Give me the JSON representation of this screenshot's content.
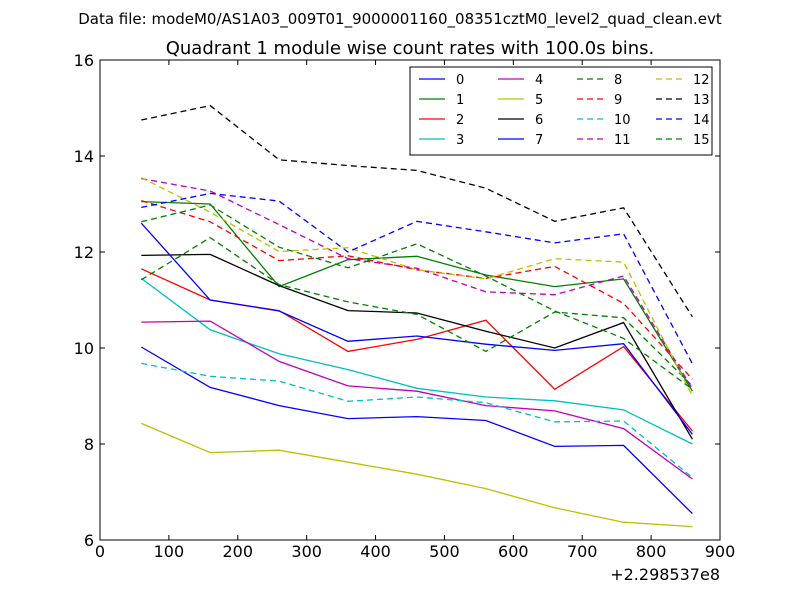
{
  "header": {
    "data_file": "Data file: modeM0/AS1A03_009T01_9000001160_08351cztM0_level2_quad_clean.evt"
  },
  "chart_data": {
    "type": "line",
    "title": "Quadrant 1 module wise count rates with 100.0s bins.",
    "xlabel": "",
    "ylabel": "",
    "x_offset_label": "+2.298537e8",
    "xlim": [
      0,
      900
    ],
    "ylim": [
      6,
      16
    ],
    "xticks": [
      0,
      100,
      200,
      300,
      400,
      500,
      600,
      700,
      800,
      900
    ],
    "yticks": [
      6,
      8,
      10,
      12,
      14,
      16
    ],
    "grid": false,
    "legend_placement": "top-right",
    "legend_columns": 4,
    "x": [
      60,
      160,
      260,
      360,
      460,
      560,
      660,
      760,
      860
    ],
    "series": [
      {
        "name": "0",
        "color": "#0000ff",
        "dash": "solid",
        "values": [
          10.02,
          9.18,
          8.8,
          8.53,
          8.57,
          8.49,
          7.95,
          7.97,
          6.55
        ]
      },
      {
        "name": "1",
        "color": "#008000",
        "dash": "solid",
        "values": [
          13.05,
          13.0,
          11.28,
          11.84,
          11.91,
          11.52,
          11.28,
          11.44,
          9.1
        ]
      },
      {
        "name": "2",
        "color": "#ff0000",
        "dash": "solid",
        "values": [
          11.65,
          11.0,
          10.78,
          9.93,
          10.18,
          10.58,
          9.14,
          10.03,
          8.27
        ]
      },
      {
        "name": "3",
        "color": "#00bfbf",
        "dash": "solid",
        "values": [
          11.45,
          10.38,
          9.88,
          9.55,
          9.16,
          8.98,
          8.9,
          8.71,
          8.0
        ]
      },
      {
        "name": "4",
        "color": "#bf00bf",
        "dash": "solid",
        "values": [
          10.54,
          10.56,
          9.72,
          9.21,
          9.1,
          8.8,
          8.69,
          8.32,
          7.27
        ]
      },
      {
        "name": "5",
        "color": "#bfbf00",
        "dash": "solid",
        "values": [
          8.43,
          7.82,
          7.87,
          7.62,
          7.37,
          7.07,
          6.67,
          6.37,
          6.28
        ]
      },
      {
        "name": "6",
        "color": "#000000",
        "dash": "solid",
        "values": [
          11.93,
          11.95,
          11.3,
          10.78,
          10.73,
          10.35,
          10.0,
          10.53,
          8.1
        ]
      },
      {
        "name": "7",
        "color": "#0000ff",
        "dash": "solid",
        "values": [
          12.6,
          11.0,
          10.77,
          10.14,
          10.25,
          10.08,
          9.95,
          10.09,
          8.2
        ]
      },
      {
        "name": "8",
        "color": "#008000",
        "dash": "dashed",
        "values": [
          11.42,
          12.3,
          11.32,
          10.96,
          10.7,
          9.93,
          10.75,
          10.63,
          9.21
        ]
      },
      {
        "name": "9",
        "color": "#ff0000",
        "dash": "dashed",
        "values": [
          13.07,
          12.63,
          11.82,
          11.92,
          11.63,
          11.45,
          11.7,
          10.93,
          9.35
        ]
      },
      {
        "name": "10",
        "color": "#00bfbf",
        "dash": "dashed",
        "values": [
          9.68,
          9.41,
          9.31,
          8.89,
          8.98,
          8.86,
          8.46,
          8.48,
          7.3
        ]
      },
      {
        "name": "11",
        "color": "#bf00bf",
        "dash": "dashed",
        "values": [
          13.53,
          13.27,
          12.57,
          11.86,
          11.66,
          11.17,
          11.11,
          11.5,
          9.15
        ]
      },
      {
        "name": "12",
        "color": "#bfbf00",
        "dash": "dashed",
        "values": [
          13.55,
          12.83,
          12.01,
          12.09,
          11.63,
          11.44,
          11.86,
          11.79,
          9.0
        ]
      },
      {
        "name": "13",
        "color": "#000000",
        "dash": "dashed",
        "values": [
          14.75,
          15.05,
          13.92,
          13.8,
          13.7,
          13.33,
          12.64,
          12.92,
          10.65
        ]
      },
      {
        "name": "14",
        "color": "#0000ff",
        "dash": "dashed",
        "values": [
          12.93,
          13.22,
          13.06,
          12.0,
          12.64,
          12.42,
          12.19,
          12.38,
          9.67
        ]
      },
      {
        "name": "15",
        "color": "#008000",
        "dash": "dashed",
        "values": [
          12.63,
          12.98,
          12.1,
          11.67,
          12.17,
          11.5,
          10.77,
          10.2,
          9.14
        ]
      }
    ]
  }
}
